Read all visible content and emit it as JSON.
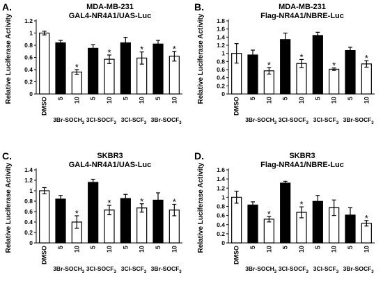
{
  "chart_data": [
    {
      "type": "bar",
      "panel_label": "A.",
      "title": "MDA-MB-231",
      "subtitle": "GAL4-NR4A1/UAS-Luc",
      "ylabel": "Relative Luciferase Activity",
      "ylim": [
        0,
        1.2
      ],
      "yticks": [
        "0",
        "0.2",
        "0.4",
        "0.6",
        "0.8",
        "1",
        "1.2"
      ],
      "bars": [
        {
          "x": "DMSO",
          "value": 1.0,
          "error": 0.03,
          "fill": "white",
          "star": false
        },
        {
          "x": "5",
          "value": 0.84,
          "error": 0.04,
          "fill": "black",
          "star": false
        },
        {
          "x": "10",
          "value": 0.36,
          "error": 0.04,
          "fill": "white",
          "star": true
        },
        {
          "x": "5",
          "value": 0.75,
          "error": 0.06,
          "fill": "black",
          "star": false
        },
        {
          "x": "10",
          "value": 0.57,
          "error": 0.07,
          "fill": "white",
          "star": true
        },
        {
          "x": "5",
          "value": 0.84,
          "error": 0.09,
          "fill": "black",
          "star": false
        },
        {
          "x": "10",
          "value": 0.59,
          "error": 0.1,
          "fill": "white",
          "star": true
        },
        {
          "x": "5",
          "value": 0.82,
          "error": 0.06,
          "fill": "black",
          "star": false
        },
        {
          "x": "10",
          "value": 0.62,
          "error": 0.08,
          "fill": "white",
          "star": true
        }
      ],
      "groups": [
        {
          "base": "3Br-SOCH",
          "sub": "3",
          "start": 1,
          "end": 2
        },
        {
          "base": "3Cl-SOCF",
          "sub": "3",
          "start": 3,
          "end": 4
        },
        {
          "base": "3Cl-SCF",
          "sub": "3",
          "start": 5,
          "end": 6
        },
        {
          "base": "3Br-SOCF",
          "sub": "3",
          "start": 7,
          "end": 8
        }
      ]
    },
    {
      "type": "bar",
      "panel_label": "B.",
      "title": "MDA-MB-231",
      "subtitle": "Flag-NR4A1/NBRE-Luc",
      "ylabel": "Relative Luciferase Activity",
      "ylim": [
        0,
        1.8
      ],
      "yticks": [
        "0",
        "0.2",
        "0.4",
        "0.6",
        "0.8",
        "1",
        "1.2",
        "1.4",
        "1.6",
        "1.8"
      ],
      "bars": [
        {
          "x": "DMSO",
          "value": 1.0,
          "error": 0.24,
          "fill": "white",
          "star": false
        },
        {
          "x": "5",
          "value": 0.96,
          "error": 0.12,
          "fill": "black",
          "star": false
        },
        {
          "x": "10",
          "value": 0.57,
          "error": 0.08,
          "fill": "white",
          "star": true
        },
        {
          "x": "5",
          "value": 1.34,
          "error": 0.16,
          "fill": "black",
          "star": false
        },
        {
          "x": "10",
          "value": 0.75,
          "error": 0.1,
          "fill": "white",
          "star": true
        },
        {
          "x": "5",
          "value": 1.44,
          "error": 0.08,
          "fill": "black",
          "star": false
        },
        {
          "x": "10",
          "value": 0.61,
          "error": 0.03,
          "fill": "white",
          "star": true
        },
        {
          "x": "5",
          "value": 1.07,
          "error": 0.08,
          "fill": "black",
          "star": false
        },
        {
          "x": "10",
          "value": 0.74,
          "error": 0.08,
          "fill": "white",
          "star": true
        }
      ],
      "groups": [
        {
          "base": "3Br-SOCH",
          "sub": "3",
          "start": 1,
          "end": 2
        },
        {
          "base": "3Cl-SOCF",
          "sub": "3",
          "start": 3,
          "end": 4
        },
        {
          "base": "3Cl-SCF",
          "sub": "3",
          "start": 5,
          "end": 6
        },
        {
          "base": "3Br-SOCF",
          "sub": "3",
          "start": 7,
          "end": 8
        }
      ]
    },
    {
      "type": "bar",
      "panel_label": "C.",
      "title": "SKBR3",
      "subtitle": "GAL4-NR4A1/UAS-Luc",
      "ylabel": "Relative Luciferase Activity",
      "ylim": [
        0,
        1.4
      ],
      "yticks": [
        "0",
        "0.2",
        "0.4",
        "0.6",
        "0.8",
        "1",
        "1.2",
        "1.4"
      ],
      "bars": [
        {
          "x": "DMSO",
          "value": 1.0,
          "error": 0.06,
          "fill": "white",
          "star": false
        },
        {
          "x": "5",
          "value": 0.84,
          "error": 0.07,
          "fill": "black",
          "star": false
        },
        {
          "x": "10",
          "value": 0.4,
          "error": 0.12,
          "fill": "white",
          "star": true
        },
        {
          "x": "5",
          "value": 1.16,
          "error": 0.06,
          "fill": "black",
          "star": false
        },
        {
          "x": "10",
          "value": 0.63,
          "error": 0.09,
          "fill": "white",
          "star": true
        },
        {
          "x": "5",
          "value": 0.85,
          "error": 0.08,
          "fill": "black",
          "star": false
        },
        {
          "x": "10",
          "value": 0.67,
          "error": 0.08,
          "fill": "white",
          "star": true
        },
        {
          "x": "5",
          "value": 0.82,
          "error": 0.14,
          "fill": "black",
          "star": false
        },
        {
          "x": "10",
          "value": 0.63,
          "error": 0.11,
          "fill": "white",
          "star": true
        }
      ],
      "groups": [
        {
          "base": "3Br-SOCH",
          "sub": "3",
          "start": 1,
          "end": 2
        },
        {
          "base": "3Cl-SOCF",
          "sub": "3",
          "start": 3,
          "end": 4
        },
        {
          "base": "3Cl-SCF",
          "sub": "3",
          "start": 5,
          "end": 6
        },
        {
          "base": "3Br-SOCF",
          "sub": "3",
          "start": 7,
          "end": 8
        }
      ]
    },
    {
      "type": "bar",
      "panel_label": "D.",
      "title": "SKBR3",
      "subtitle": "Flag-NR4A1/NBRE-Luc",
      "ylabel": "Relative Luciferase Activity",
      "ylim": [
        0,
        1.6
      ],
      "yticks": [
        "0",
        "0.2",
        "0.4",
        "0.6",
        "0.8",
        "1",
        "1.2",
        "1.4",
        "1.6"
      ],
      "bars": [
        {
          "x": "DMSO",
          "value": 1.0,
          "error": 0.13,
          "fill": "white",
          "star": false
        },
        {
          "x": "5",
          "value": 0.83,
          "error": 0.07,
          "fill": "black",
          "star": false
        },
        {
          "x": "10",
          "value": 0.52,
          "error": 0.06,
          "fill": "white",
          "star": true
        },
        {
          "x": "5",
          "value": 1.31,
          "error": 0.04,
          "fill": "black",
          "star": false
        },
        {
          "x": "10",
          "value": 0.67,
          "error": 0.12,
          "fill": "white",
          "star": true
        },
        {
          "x": "5",
          "value": 0.91,
          "error": 0.13,
          "fill": "black",
          "star": false
        },
        {
          "x": "10",
          "value": 0.77,
          "error": 0.17,
          "fill": "white",
          "star": false
        },
        {
          "x": "5",
          "value": 0.61,
          "error": 0.16,
          "fill": "black",
          "star": false
        },
        {
          "x": "10",
          "value": 0.43,
          "error": 0.06,
          "fill": "white",
          "star": true
        }
      ],
      "groups": [
        {
          "base": "3Br-SOCH",
          "sub": "3",
          "start": 1,
          "end": 2
        },
        {
          "base": "3Cl-SOCF",
          "sub": "3",
          "start": 3,
          "end": 4
        },
        {
          "base": "3Cl-SCF",
          "sub": "3",
          "start": 5,
          "end": 6
        },
        {
          "base": "3Br-SOCF",
          "sub": "3",
          "start": 7,
          "end": 8
        }
      ]
    }
  ]
}
